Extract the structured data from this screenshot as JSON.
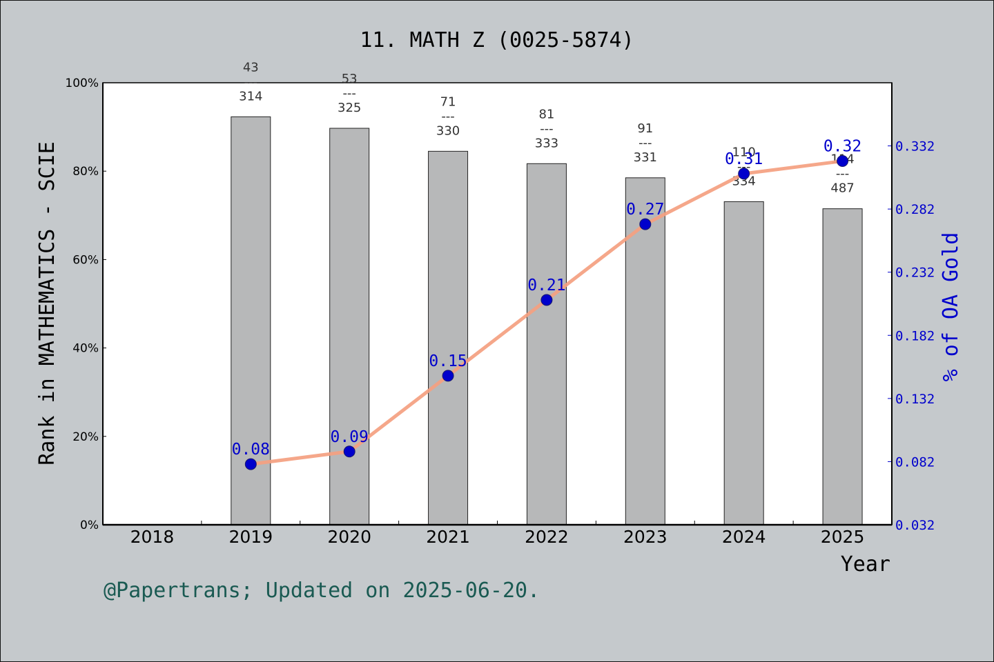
{
  "chart_data": {
    "type": "bar",
    "title": "11. MATH Z (0025-5874)",
    "xlabel": "Year",
    "ylabel": "Rank in MATHEMATICS - SCIE",
    "y2label": "% of OA Gold",
    "footer": "@Papertrans; Updated on 2025-06-20.",
    "categories": [
      "2018",
      "2019",
      "2020",
      "2021",
      "2022",
      "2023",
      "2024",
      "2025"
    ],
    "ylim": [
      0,
      100
    ],
    "y_ticks": [
      "0%",
      "20%",
      "40%",
      "60%",
      "80%",
      "100%"
    ],
    "y2lim": [
      0.032,
      0.382
    ],
    "y2_ticks": [
      "0.032",
      "0.082",
      "0.132",
      "0.182",
      "0.232",
      "0.282",
      "0.332"
    ],
    "grid": false,
    "series": [
      {
        "kind": "bar",
        "values": [
          null,
          92.3,
          89.7,
          84.5,
          81.7,
          78.5,
          73.1,
          71.5
        ],
        "labels": [
          null,
          {
            "rank": "43",
            "sep": "---",
            "total": "314"
          },
          {
            "rank": "53",
            "sep": "---",
            "total": "325"
          },
          {
            "rank": "71",
            "sep": "---",
            "total": "330"
          },
          {
            "rank": "81",
            "sep": "---",
            "total": "333"
          },
          {
            "rank": "91",
            "sep": "---",
            "total": "331"
          },
          {
            "rank": "110",
            "sep": "---",
            "total": "334"
          },
          {
            "rank": "114",
            "sep": "---",
            "total": "487"
          }
        ],
        "color": "#b7b8b9"
      },
      {
        "kind": "line",
        "axis": "right",
        "values": [
          null,
          0.08,
          0.09,
          0.15,
          0.21,
          0.27,
          0.31,
          0.32
        ],
        "labels": [
          null,
          "0.08",
          "0.09",
          "0.15",
          "0.21",
          "0.27",
          "0.31",
          "0.32"
        ],
        "line_color": "#f4a080",
        "marker_color": "#0000cc"
      }
    ]
  }
}
